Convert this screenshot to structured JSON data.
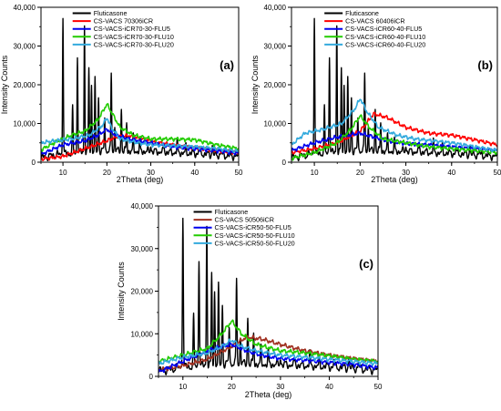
{
  "chart_data": [
    {
      "type": "line",
      "panel_label": "(a)",
      "xlabel": "2Theta (deg)",
      "ylabel": "Intensity Counts",
      "xlim": [
        5,
        50
      ],
      "ylim": [
        0,
        40000
      ],
      "x_ticks": [
        "10",
        "20",
        "30",
        "40",
        "50"
      ],
      "y_ticks": [
        "0",
        "10,000",
        "20,000",
        "30,000",
        "40,000"
      ],
      "legend_position": "top-right",
      "series": [
        {
          "name": "Fluticasone",
          "color": "#000000",
          "baseline": [
            [
              5,
              1200
            ],
            [
              10,
              2200
            ],
            [
              20,
              3000
            ],
            [
              30,
              2800
            ],
            [
              40,
              2300
            ],
            [
              50,
              1500
            ]
          ],
          "peaks": [
            [
              10,
              38000
            ],
            [
              12.2,
              14000
            ],
            [
              13.3,
              28000
            ],
            [
              14.9,
              35500
            ],
            [
              15.9,
              24000
            ],
            [
              16.5,
              20000
            ],
            [
              17.3,
              21000
            ],
            [
              18.1,
              17000
            ],
            [
              19.5,
              12000
            ],
            [
              21,
              23000
            ],
            [
              21.8,
              9500
            ],
            [
              23.3,
              14000
            ],
            [
              24.5,
              10000
            ],
            [
              26,
              6500
            ],
            [
              27.5,
              5500
            ],
            [
              30,
              4500
            ],
            [
              33,
              4000
            ],
            [
              36,
              5500
            ],
            [
              38,
              4000
            ],
            [
              41,
              4000
            ],
            [
              44,
              4500
            ],
            [
              46,
              3500
            ]
          ]
        },
        {
          "name": "CS-VACS 70306iCR",
          "color": "#ff0000",
          "curve": [
            [
              5,
              800
            ],
            [
              10,
              1500
            ],
            [
              15,
              3500
            ],
            [
              20,
              5500
            ],
            [
              22,
              6500
            ],
            [
              25,
              6800
            ],
            [
              28,
              6000
            ],
            [
              32,
              5000
            ],
            [
              36,
              4300
            ],
            [
              40,
              3800
            ],
            [
              45,
              3100
            ],
            [
              50,
              2500
            ]
          ]
        },
        {
          "name": "CS-VACS-iCR70-30-FLU5",
          "color": "#0000ee",
          "curve": [
            [
              5,
              2000
            ],
            [
              10,
              4500
            ],
            [
              15,
              5500
            ],
            [
              18,
              7000
            ],
            [
              20,
              8500
            ],
            [
              22,
              7000
            ],
            [
              25,
              6000
            ],
            [
              30,
              5000
            ],
            [
              35,
              4000
            ],
            [
              40,
              3500
            ],
            [
              45,
              3000
            ],
            [
              50,
              2300
            ]
          ]
        },
        {
          "name": "CS-VACS-iCR70-30-FLU10",
          "color": "#22cc00",
          "curve": [
            [
              5,
              3200
            ],
            [
              8,
              5000
            ],
            [
              12,
              7000
            ],
            [
              15,
              8000
            ],
            [
              18,
              11000
            ],
            [
              20,
              15000
            ],
            [
              21.5,
              12000
            ],
            [
              23,
              9000
            ],
            [
              26,
              7000
            ],
            [
              30,
              6000
            ],
            [
              35,
              6000
            ],
            [
              40,
              5800
            ],
            [
              45,
              4500
            ],
            [
              50,
              3500
            ]
          ]
        },
        {
          "name": "CS-VACS-iCR70-30-FLU20",
          "color": "#33aadd",
          "curve": [
            [
              5,
              5000
            ],
            [
              8,
              5500
            ],
            [
              12,
              6000
            ],
            [
              16,
              7000
            ],
            [
              19,
              9500
            ],
            [
              20,
              11500
            ],
            [
              21,
              9000
            ],
            [
              23,
              6000
            ],
            [
              27,
              5000
            ],
            [
              30,
              4500
            ],
            [
              35,
              4300
            ],
            [
              40,
              4000
            ],
            [
              45,
              3500
            ],
            [
              50,
              2800
            ]
          ]
        }
      ]
    },
    {
      "type": "line",
      "panel_label": "(b)",
      "xlabel": "2Theta (deg)",
      "ylabel": "Intensity Counts",
      "xlim": [
        5,
        50
      ],
      "ylim": [
        0,
        40000
      ],
      "x_ticks": [
        "10",
        "20",
        "30",
        "40",
        "50"
      ],
      "y_ticks": [
        "0",
        "10,000",
        "20,000",
        "30,000",
        "40,000"
      ],
      "legend_position": "top-right",
      "series": [
        {
          "name": "Fluticasone",
          "color": "#000000",
          "baseline": [
            [
              5,
              1200
            ],
            [
              10,
              2200
            ],
            [
              20,
              3000
            ],
            [
              30,
              2800
            ],
            [
              40,
              2300
            ],
            [
              50,
              1500
            ]
          ],
          "peaks": [
            [
              10,
              38000
            ],
            [
              12.2,
              14000
            ],
            [
              13.3,
              28000
            ],
            [
              14.9,
              35500
            ],
            [
              15.9,
              24000
            ],
            [
              16.5,
              20000
            ],
            [
              17.3,
              21000
            ],
            [
              18.1,
              17000
            ],
            [
              19.5,
              12000
            ],
            [
              21,
              23000
            ],
            [
              21.8,
              9500
            ],
            [
              23.3,
              14000
            ],
            [
              24.5,
              10000
            ],
            [
              26,
              6500
            ],
            [
              27.5,
              5500
            ],
            [
              30,
              4500
            ],
            [
              33,
              4000
            ],
            [
              36,
              5500
            ],
            [
              38,
              4000
            ],
            [
              41,
              4000
            ],
            [
              44,
              4500
            ],
            [
              46,
              3500
            ]
          ]
        },
        {
          "name": "CS-VACS 60406iCR",
          "color": "#ff0000",
          "curve": [
            [
              5,
              2500
            ],
            [
              10,
              3500
            ],
            [
              15,
              5000
            ],
            [
              20,
              8000
            ],
            [
              23,
              12500
            ],
            [
              26,
              11500
            ],
            [
              30,
              9000
            ],
            [
              35,
              7500
            ],
            [
              40,
              7000
            ],
            [
              45,
              5800
            ],
            [
              50,
              4500
            ]
          ]
        },
        {
          "name": "CS-VACS-iCR60-40-FLU5",
          "color": "#0000ee",
          "curve": [
            [
              5,
              3000
            ],
            [
              10,
              5000
            ],
            [
              15,
              6500
            ],
            [
              20,
              7500
            ],
            [
              23,
              6500
            ],
            [
              26,
              5500
            ],
            [
              30,
              4800
            ],
            [
              35,
              4500
            ],
            [
              40,
              4000
            ],
            [
              45,
              3500
            ],
            [
              50,
              3000
            ]
          ]
        },
        {
          "name": "CS-VACS-iCR60-40-FLU10",
          "color": "#22cc00",
          "curve": [
            [
              5,
              1000
            ],
            [
              10,
              2500
            ],
            [
              15,
              5000
            ],
            [
              18,
              8500
            ],
            [
              20,
              12000
            ],
            [
              22,
              9000
            ],
            [
              25,
              6000
            ],
            [
              30,
              5000
            ],
            [
              35,
              4000
            ],
            [
              40,
              3500
            ],
            [
              45,
              3000
            ],
            [
              50,
              2500
            ]
          ]
        },
        {
          "name": "CS-VACS-iCR60-40-FLU20",
          "color": "#33aadd",
          "curve": [
            [
              5,
              4500
            ],
            [
              8,
              7500
            ],
            [
              12,
              8500
            ],
            [
              16,
              10000
            ],
            [
              19,
              14000
            ],
            [
              20,
              16500
            ],
            [
              21.5,
              13000
            ],
            [
              24,
              9000
            ],
            [
              28,
              7000
            ],
            [
              32,
              6000
            ],
            [
              36,
              5500
            ],
            [
              40,
              5000
            ],
            [
              45,
              4000
            ],
            [
              50,
              3000
            ]
          ]
        }
      ]
    },
    {
      "type": "line",
      "panel_label": "(c)",
      "xlabel": "2Theta (deg)",
      "ylabel": "Intensity Counts",
      "xlim": [
        5,
        50
      ],
      "ylim": [
        0,
        40000
      ],
      "x_ticks": [
        "10",
        "20",
        "30",
        "40",
        "50"
      ],
      "y_ticks": [
        "0",
        "10,000",
        "20,000",
        "30,000",
        "40,000"
      ],
      "legend_position": "top-right",
      "series": [
        {
          "name": "Fluticasone",
          "color": "#000000",
          "baseline": [
            [
              5,
              1200
            ],
            [
              10,
              2200
            ],
            [
              20,
              3000
            ],
            [
              30,
              2800
            ],
            [
              40,
              2300
            ],
            [
              50,
              1500
            ]
          ],
          "peaks": [
            [
              10,
              38000
            ],
            [
              12.2,
              14000
            ],
            [
              13.3,
              28000
            ],
            [
              14.9,
              35500
            ],
            [
              15.9,
              24000
            ],
            [
              16.5,
              20000
            ],
            [
              17.3,
              21000
            ],
            [
              18.1,
              17000
            ],
            [
              19.5,
              12000
            ],
            [
              21,
              23000
            ],
            [
              21.8,
              9500
            ],
            [
              23.3,
              14000
            ],
            [
              24.5,
              10000
            ],
            [
              26,
              6500
            ],
            [
              27.5,
              5500
            ],
            [
              30,
              4500
            ],
            [
              33,
              4000
            ],
            [
              36,
              5500
            ],
            [
              38,
              4000
            ],
            [
              41,
              4000
            ],
            [
              44,
              4500
            ],
            [
              46,
              3500
            ]
          ]
        },
        {
          "name": "CS-VACS 50506iCR",
          "color": "#a03020",
          "curve": [
            [
              5,
              1500
            ],
            [
              10,
              2500
            ],
            [
              15,
              4000
            ],
            [
              20,
              7000
            ],
            [
              23,
              9200
            ],
            [
              26,
              8800
            ],
            [
              30,
              7500
            ],
            [
              35,
              6000
            ],
            [
              40,
              5000
            ],
            [
              45,
              4200
            ],
            [
              50,
              3500
            ]
          ]
        },
        {
          "name": "CS-VACS-iCR50-50-FLU5",
          "color": "#0000ee",
          "curve": [
            [
              5,
              1000
            ],
            [
              10,
              3500
            ],
            [
              15,
              6000
            ],
            [
              18,
              7000
            ],
            [
              20,
              7500
            ],
            [
              23,
              6000
            ],
            [
              26,
              5000
            ],
            [
              30,
              4200
            ],
            [
              35,
              3800
            ],
            [
              40,
              3300
            ],
            [
              45,
              2800
            ],
            [
              50,
              2000
            ]
          ]
        },
        {
          "name": "CS-VACS-iCR50-50-FLU10",
          "color": "#22cc00",
          "curve": [
            [
              5,
              3500
            ],
            [
              10,
              5000
            ],
            [
              15,
              6500
            ],
            [
              18,
              10000
            ],
            [
              20,
              13000
            ],
            [
              22,
              10000
            ],
            [
              25,
              7500
            ],
            [
              30,
              6000
            ],
            [
              35,
              5500
            ],
            [
              40,
              4800
            ],
            [
              45,
              4000
            ],
            [
              50,
              3500
            ]
          ]
        },
        {
          "name": "CS-VACS-iCR50-50-FLU20",
          "color": "#33aadd",
          "curve": [
            [
              5,
              3000
            ],
            [
              10,
              4500
            ],
            [
              15,
              5500
            ],
            [
              18,
              7000
            ],
            [
              20,
              8500
            ],
            [
              22,
              7000
            ],
            [
              25,
              6000
            ],
            [
              30,
              5000
            ],
            [
              35,
              4500
            ],
            [
              40,
              4000
            ],
            [
              45,
              3500
            ],
            [
              50,
              3000
            ]
          ]
        }
      ]
    }
  ]
}
